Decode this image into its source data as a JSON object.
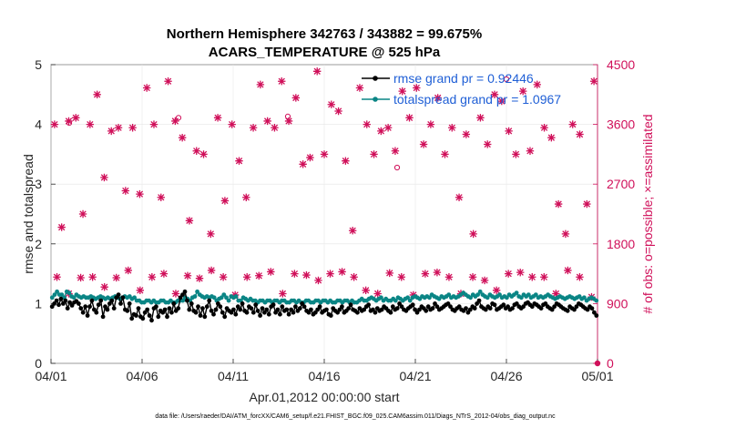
{
  "chart_data": {
    "type": "line",
    "title_line1": "Northern Hemisphere 342763 / 343882 = 99.675%",
    "title_line2": "ACARS_TEMPERATURE @ 525 hPa",
    "xlabel": "Apr.01,2012 00:00:00 start",
    "ylabel": "rmse and totalspread",
    "ylabel_right": "# of obs: o=possible; ×=assimilated",
    "footer": "data file: /Users/raeder/DAI/ATM_forcXX/CAM6_setup/f.e21.FHIST_BGC.f09_025.CAM6assim.011/Diags_NTrS_2012-04/obs_diag_output.nc",
    "x_ticks": [
      {
        "day": 0,
        "label": "04/01"
      },
      {
        "day": 5,
        "label": "04/06"
      },
      {
        "day": 10,
        "label": "04/11"
      },
      {
        "day": 15,
        "label": "04/16"
      },
      {
        "day": 20,
        "label": "04/21"
      },
      {
        "day": 25,
        "label": "04/26"
      },
      {
        "day": 30,
        "label": "05/01"
      }
    ],
    "xlim": [
      0,
      30
    ],
    "ylim": [
      0,
      5
    ],
    "y_ticks": [
      0,
      1,
      2,
      3,
      4,
      5
    ],
    "ylim_right": [
      0,
      4500
    ],
    "y_ticks_right": [
      0,
      900,
      1800,
      2700,
      3600,
      4500
    ],
    "colors": {
      "rmse": "#000000",
      "spread": "#0a8585",
      "obs": "#d0105a",
      "legend_text": "#1f5fd6"
    },
    "series": [
      {
        "name": "rmse",
        "legend": "rmse grand pr = 0.92446",
        "color": "#000000",
        "values": [
          0.95,
          1.0,
          1.05,
          0.98,
          1.08,
          1.0,
          1.05,
          0.92,
          1.02,
          0.97,
          1.02,
          1.04,
          1.0,
          0.92,
          0.85,
          0.95,
          0.8,
          0.95,
          1.05,
          0.9,
          0.85,
          0.98,
          1.05,
          0.78,
          0.95,
          0.9,
          1.0,
          1.05,
          0.92,
          1.1,
          1.15,
          1.0,
          1.1,
          0.9,
          0.88,
          1.0,
          0.75,
          0.82,
          0.8,
          0.92,
          0.78,
          0.75,
          0.85,
          0.9,
          0.8,
          0.72,
          0.92,
          0.95,
          0.78,
          0.88,
          0.85,
          0.9,
          0.78,
          0.92,
          0.85,
          1.0,
          0.88,
          0.92,
          1.1,
          1.15,
          1.2,
          1.05,
          0.9,
          1.0,
          0.88,
          0.85,
          0.95,
          0.8,
          0.92,
          0.78,
          0.95,
          1.05,
          0.88,
          0.82,
          0.9,
          1.0,
          0.95,
          0.85,
          0.78,
          0.92,
          0.88,
          0.85,
          0.9,
          0.82,
          0.95,
          0.9,
          1.0,
          0.88,
          0.85,
          0.95,
          0.92,
          0.85,
          0.98,
          0.88,
          0.8,
          0.92,
          0.85,
          0.9,
          0.82,
          0.95,
          0.98,
          0.85,
          0.9,
          0.82,
          0.95,
          0.88,
          0.9,
          0.82,
          0.9,
          0.85,
          0.95,
          0.88,
          0.92,
          1.0,
          0.95,
          0.88,
          0.85,
          0.9,
          0.82,
          0.85,
          0.9,
          0.95,
          0.85,
          0.88,
          0.9,
          0.82,
          0.8,
          0.92,
          0.88,
          0.85,
          0.9,
          0.95,
          0.85,
          0.88,
          0.92,
          0.98,
          0.9,
          0.88,
          0.85,
          0.92,
          0.88,
          0.9,
          0.95,
          0.98,
          0.88,
          0.9,
          0.85,
          0.92,
          0.88,
          0.9,
          0.95,
          0.92,
          0.88,
          0.85,
          0.95,
          0.9,
          0.92,
          1.0,
          0.95,
          0.9,
          0.88,
          0.92,
          0.95,
          0.98,
          0.9,
          0.85,
          0.9,
          0.95,
          0.92,
          0.88,
          0.95,
          0.9,
          0.92,
          1.0,
          0.95,
          0.9,
          0.92,
          0.95,
          0.98,
          1.0,
          0.95,
          0.9,
          0.88,
          0.92,
          0.95,
          0.9,
          0.88,
          0.92,
          0.85,
          0.9,
          0.95,
          0.92,
          1.0,
          1.05,
          0.95,
          0.92,
          0.9,
          0.95,
          0.92,
          1.0,
          0.98,
          0.9,
          0.92,
          0.95,
          0.98,
          0.92,
          0.95,
          0.9,
          0.92,
          0.98,
          1.0,
          0.95,
          0.92,
          0.95,
          1.0,
          1.02,
          0.98,
          0.95,
          1.0,
          0.98,
          0.95,
          0.92,
          0.98,
          1.0,
          0.95,
          0.92,
          0.9,
          0.95,
          1.0,
          0.98,
          0.95,
          0.92,
          0.9,
          0.88,
          0.95,
          0.92,
          0.9,
          0.95,
          1.0,
          0.98,
          0.95,
          0.92,
          0.9,
          0.95,
          0.92,
          0.85,
          0.8
        ],
        "markers": "filled-circle"
      },
      {
        "name": "totalspread",
        "legend": "totalspread grand pr = 1.0967",
        "color": "#0a8585",
        "values": [
          1.1,
          1.15,
          1.2,
          1.15,
          1.15,
          1.1,
          1.2,
          1.18,
          1.12,
          1.1,
          1.15,
          1.12,
          1.1,
          1.12,
          1.1,
          1.1,
          1.12,
          1.1,
          1.08,
          1.1,
          1.12,
          1.1,
          1.08,
          1.1,
          1.08,
          1.1,
          1.12,
          1.1,
          1.08,
          1.1,
          1.12,
          1.1,
          1.12,
          1.08,
          1.1,
          1.05,
          1.05,
          1.02,
          1.02,
          1.05,
          1.05,
          1.02,
          1.05,
          1.02,
          1.02,
          1.05,
          1.05,
          1.02,
          1.02,
          1.05,
          1.02,
          1.02,
          1.05,
          1.05,
          1.05,
          1.1,
          1.08,
          1.05,
          1.1,
          1.12,
          1.2,
          1.15,
          1.12,
          1.1,
          1.12,
          1.1,
          1.12,
          1.1,
          1.05,
          1.08,
          1.1,
          1.15,
          1.1,
          1.05,
          1.12,
          1.1,
          1.12,
          1.05,
          1.05,
          1.1,
          1.08,
          1.05,
          1.08,
          1.05,
          1.05,
          1.02,
          1.05,
          1.05,
          1.02,
          1.05,
          1.05,
          1.02,
          1.05,
          1.05,
          1.02,
          1.05,
          1.05,
          1.02,
          1.02,
          1.05,
          1.05,
          1.02,
          1.05,
          1.02,
          1.02,
          1.05,
          1.05,
          1.02,
          1.02,
          1.05,
          1.05,
          1.02,
          1.05,
          1.05,
          1.02,
          1.05,
          1.02,
          1.02,
          1.05,
          1.05,
          1.02,
          1.05,
          1.05,
          1.02,
          1.05,
          1.02,
          1.02,
          1.05,
          1.08,
          1.05,
          1.05,
          1.08,
          1.1,
          1.08,
          1.05,
          1.08,
          1.1,
          1.05,
          1.08,
          1.05,
          1.05,
          1.08,
          1.05,
          1.1,
          1.08,
          1.05,
          1.08,
          1.1,
          1.05,
          1.1,
          1.12,
          1.1,
          1.08,
          1.12,
          1.1,
          1.12,
          1.1,
          1.15,
          1.12,
          1.1,
          1.08,
          1.12,
          1.1,
          1.12,
          1.15,
          1.1,
          1.12,
          1.1,
          1.12,
          1.15,
          1.18,
          1.15,
          1.12,
          1.1,
          1.15,
          1.12,
          1.15,
          1.2,
          1.15,
          1.12,
          1.1,
          1.15,
          1.12,
          1.1,
          1.12,
          1.15,
          1.1,
          1.12,
          1.1,
          1.15,
          1.12,
          1.15,
          1.18,
          1.12,
          1.1,
          1.15,
          1.12,
          1.15,
          1.1,
          1.12,
          1.15,
          1.1,
          1.12,
          1.1,
          1.12,
          1.15,
          1.12,
          1.1,
          1.08,
          1.1,
          1.12,
          1.1,
          1.08,
          1.1,
          1.12,
          1.1,
          1.08,
          1.1,
          1.12,
          1.08,
          1.1,
          1.05,
          1.08,
          1.1,
          1.08,
          1.05
        ],
        "markers": "filled-circle"
      }
    ],
    "obs_counts": {
      "name": "# of obs",
      "color": "#d0105a",
      "assimilated": [
        3600,
        2050,
        3650,
        3700,
        2250,
        3600,
        4050,
        2800,
        3500,
        3550,
        2600,
        3550,
        2550,
        4150,
        3600,
        2500,
        4250,
        3650,
        3400,
        2150,
        3200,
        3150,
        1950,
        3700,
        2450,
        3600,
        3050,
        2500,
        3550,
        4200,
        3650,
        3550,
        4250,
        3650,
        4000,
        3000,
        3100,
        4400,
        3150,
        3900,
        3800,
        3050,
        2000,
        4150,
        3600,
        3150,
        3500,
        3550,
        3200,
        4100,
        3700,
        4150,
        3300,
        3600,
        4000,
        3150,
        3550,
        2500,
        3450,
        1950,
        3700,
        3300,
        4050,
        3950,
        3500,
        3150,
        4100,
        3200,
        4200,
        3550,
        3400,
        2400,
        1950,
        3600,
        3450,
        2400,
        4250
      ],
      "possible": [
        3620,
        3700,
        3720,
        2950,
        4280
      ],
      "low_band": [
        1300,
        1050,
        1290,
        1300,
        1150,
        1290,
        1400,
        1100,
        1300,
        1350,
        1050,
        1320,
        1280,
        1400,
        1300,
        1030,
        1300,
        1320,
        1380,
        1050,
        1350,
        1330,
        1250,
        1350,
        1380,
        1300,
        1100,
        1050,
        1360,
        1300,
        1030,
        1350,
        1370,
        1300,
        1050,
        1300,
        1250,
        1100,
        1350,
        1370,
        1300,
        1300,
        1050,
        1400,
        1300,
        1000
      ]
    }
  }
}
